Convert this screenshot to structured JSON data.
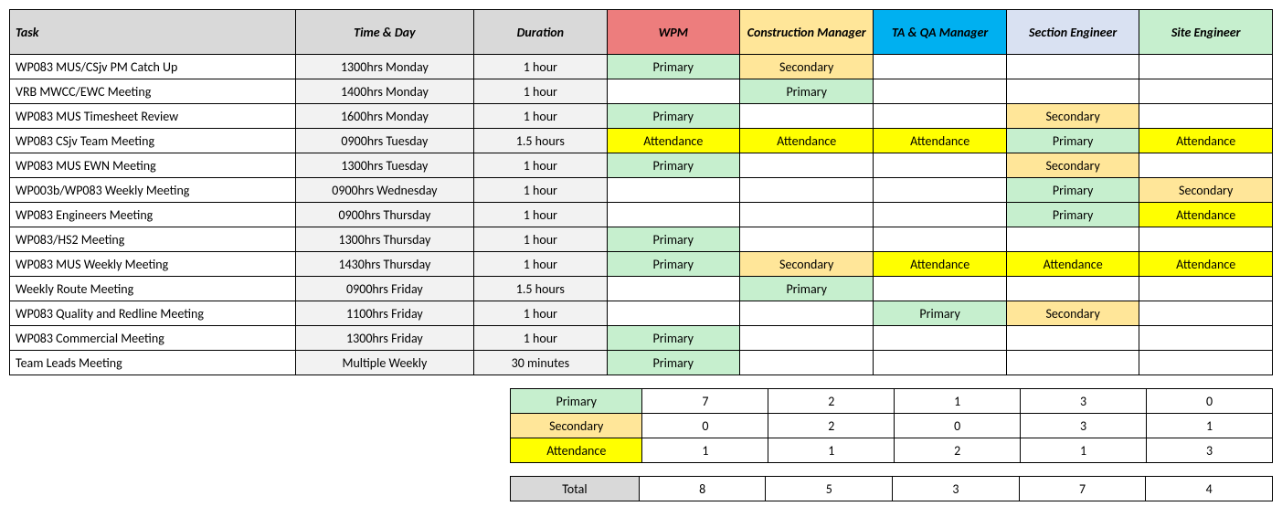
{
  "headers": {
    "task": "Task",
    "time": "Time & Day",
    "duration": "Duration",
    "roles": [
      "WPM",
      "Construction Manager",
      "TA & QA Manager",
      "Section Engineer",
      "Site Engineer"
    ],
    "role_colors": [
      "#ed7d7d",
      "#ffe699",
      "#00b0f0",
      "#d9e1f2",
      "#c6efce"
    ]
  },
  "cell_styles": {
    "Primary": "cell-primary",
    "Secondary": "cell-secondary",
    "Attendance": "cell-attend"
  },
  "rows": [
    {
      "task": "WP083 MUS/CSjv PM Catch Up",
      "time": "1300hrs Monday",
      "dur": "1 hour",
      "r": [
        "Primary",
        "Secondary",
        "",
        "",
        ""
      ]
    },
    {
      "task": "VRB MWCC/EWC Meeting",
      "time": "1400hrs Monday",
      "dur": "1 hour",
      "r": [
        "",
        "Primary",
        "",
        "",
        ""
      ]
    },
    {
      "task": "WP083 MUS Timesheet Review",
      "time": "1600hrs Monday",
      "dur": "1 hour",
      "r": [
        "Primary",
        "",
        "",
        "Secondary",
        ""
      ]
    },
    {
      "task": "WP083 CSjv Team Meeting",
      "time": "0900hrs Tuesday",
      "dur": "1.5 hours",
      "r": [
        "Attendance",
        "Attendance",
        "Attendance",
        "Primary",
        "Attendance"
      ]
    },
    {
      "task": "WP083 MUS EWN Meeting",
      "time": "1300hrs Tuesday",
      "dur": "1 hour",
      "r": [
        "Primary",
        "",
        "",
        "Secondary",
        ""
      ]
    },
    {
      "task": "WP003b/WP083 Weekly Meeting",
      "time": "0900hrs Wednesday",
      "dur": "1 hour",
      "r": [
        "",
        "",
        "",
        "Primary",
        "Secondary"
      ]
    },
    {
      "task": "WP083 Engineers Meeting",
      "time": "0900hrs Thursday",
      "dur": "1 hour",
      "r": [
        "",
        "",
        "",
        "Primary",
        "Attendance"
      ]
    },
    {
      "task": "WP083/HS2 Meeting",
      "time": "1300hrs Thursday",
      "dur": "1 hour",
      "r": [
        "Primary",
        "",
        "",
        "",
        ""
      ]
    },
    {
      "task": "WP083 MUS Weekly Meeting",
      "time": "1430hrs Thursday",
      "dur": "1 hour",
      "r": [
        "Primary",
        "Secondary",
        "Attendance",
        "Attendance",
        "Attendance"
      ]
    },
    {
      "task": "Weekly Route Meeting",
      "time": "0900hrs Friday",
      "dur": "1.5 hours",
      "r": [
        "",
        "Primary",
        "",
        "",
        ""
      ]
    },
    {
      "task": "WP083 Quality and Redline Meeting",
      "time": "1100hrs Friday",
      "dur": "1 hour",
      "r": [
        "",
        "",
        "Primary",
        "Secondary",
        ""
      ]
    },
    {
      "task": "WP083 Commercial Meeting",
      "time": "1300hrs Friday",
      "dur": "1 hour",
      "r": [
        "Primary",
        "",
        "",
        "",
        ""
      ]
    },
    {
      "task": "Team Leads Meeting",
      "time": "Multiple Weekly",
      "dur": "30 minutes",
      "r": [
        "Primary",
        "",
        "",
        "",
        ""
      ]
    }
  ],
  "summary": {
    "labels": [
      "Primary",
      "Secondary",
      "Attendance"
    ],
    "label_styles": [
      "cell-primary",
      "cell-secondary",
      "cell-attend"
    ],
    "values": [
      [
        7,
        2,
        1,
        3,
        0
      ],
      [
        0,
        2,
        0,
        3,
        1
      ],
      [
        1,
        1,
        2,
        1,
        3
      ]
    ]
  },
  "total": {
    "label": "Total",
    "values": [
      8,
      5,
      3,
      7,
      4
    ]
  }
}
